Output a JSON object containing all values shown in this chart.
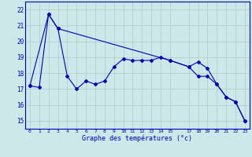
{
  "line1_x": [
    0,
    1,
    2,
    3,
    4,
    5,
    6,
    7,
    8,
    9,
    10,
    11,
    12,
    13,
    14,
    15,
    17,
    18,
    19,
    20,
    21,
    22,
    23
  ],
  "line1_y": [
    17.2,
    17.1,
    21.7,
    20.8,
    17.8,
    17.0,
    17.5,
    17.3,
    17.5,
    18.4,
    18.9,
    18.8,
    18.8,
    18.8,
    19.0,
    18.8,
    18.4,
    18.7,
    18.3,
    17.3,
    16.5,
    16.2,
    15.0
  ],
  "line2_x": [
    0,
    2,
    3,
    15,
    17,
    18,
    19,
    20,
    21,
    22,
    23
  ],
  "line2_y": [
    17.2,
    21.7,
    20.8,
    18.8,
    18.4,
    17.8,
    17.8,
    17.3,
    16.5,
    16.2,
    15.0
  ],
  "line_color": "#0000bb",
  "bg_color": "#cce8e8",
  "grid_color": "#aacccc",
  "xlabel": "Graphe des températures (°c)",
  "xlim": [
    -0.5,
    23.5
  ],
  "ylim": [
    14.5,
    22.5
  ],
  "yticks": [
    15,
    16,
    17,
    18,
    19,
    20,
    21,
    22
  ],
  "xticks": [
    0,
    1,
    2,
    3,
    4,
    5,
    6,
    7,
    8,
    9,
    10,
    11,
    12,
    13,
    14,
    15,
    17,
    18,
    19,
    20,
    21,
    22,
    23
  ]
}
